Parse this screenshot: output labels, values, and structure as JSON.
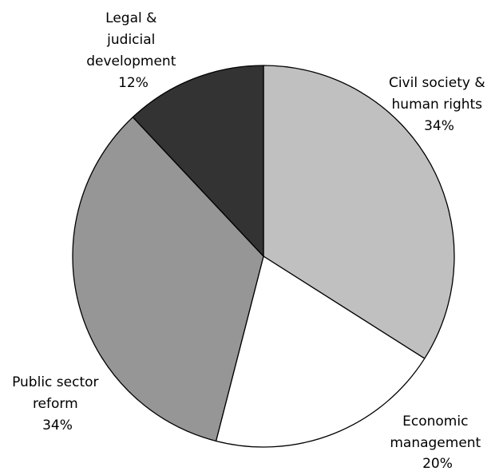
{
  "chart_data": {
    "type": "pie",
    "title": "",
    "start_angle_deg": 0,
    "direction": "clockwise",
    "slices": [
      {
        "label_lines": [
          "Civil society &",
          "human rights"
        ],
        "percent_label": "34%",
        "value": 34,
        "color": "#c0c0c0"
      },
      {
        "label_lines": [
          "Economic",
          "management"
        ],
        "percent_label": "20%",
        "value": 20,
        "color": "#ffffff"
      },
      {
        "label_lines": [
          "Public sector",
          "reform"
        ],
        "percent_label": "34%",
        "value": 34,
        "color": "#969696"
      },
      {
        "label_lines": [
          "Legal &",
          "judicial",
          "development"
        ],
        "percent_label": "12%",
        "value": 12,
        "color": "#333333"
      }
    ],
    "stroke_color": "#000000"
  }
}
